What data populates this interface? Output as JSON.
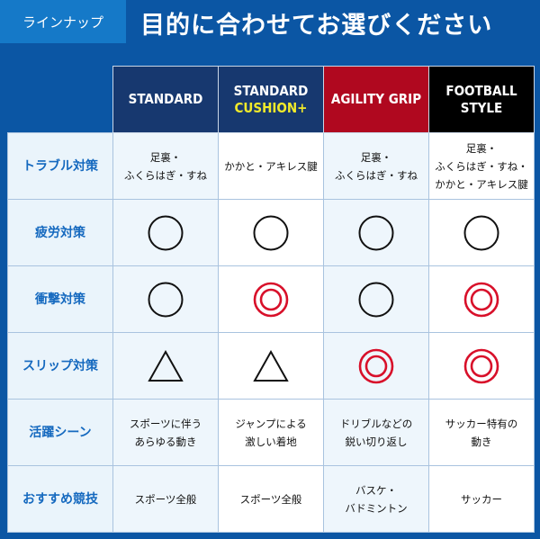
{
  "header": {
    "tag": "ラインナップ",
    "title": "目的に合わせてお選びください"
  },
  "columns": [
    {
      "line1": "STANDARD",
      "line2": "",
      "color": "#17386f"
    },
    {
      "line1": "STANDARD",
      "line2": "CUSHION+",
      "color": "#17386f"
    },
    {
      "line1": "AGILITY GRIP",
      "line2": "",
      "color": "#b0081f"
    },
    {
      "line1": "FOOTBALL",
      "line2": "STYLE",
      "color": "#000000"
    }
  ],
  "rows": [
    {
      "label": "トラブル対策",
      "cells": [
        [
          "足裏・",
          "ふくらはぎ・すね"
        ],
        [
          "かかと・アキレス腱",
          ""
        ],
        [
          "足裏・",
          "ふくらはぎ・すね"
        ],
        [
          "足裏・",
          "ふくらはぎ・すね・",
          "かかと・アキレス腱"
        ]
      ]
    },
    {
      "label": "疲労対策",
      "symbols": [
        "circle",
        "circle",
        "circle",
        "circle"
      ]
    },
    {
      "label": "衝撃対策",
      "symbols": [
        "circle",
        "double-circle",
        "circle",
        "double-circle"
      ]
    },
    {
      "label": "スリップ対策",
      "symbols": [
        "triangle",
        "triangle",
        "double-circle",
        "double-circle"
      ]
    },
    {
      "label": "活躍シーン",
      "cells": [
        [
          "スポーツに伴う",
          "あらゆる動き"
        ],
        [
          "ジャンプによる",
          "激しい着地"
        ],
        [
          "ドリブルなどの",
          "鋭い切り返し"
        ],
        [
          "サッカー特有の",
          "動き"
        ]
      ]
    },
    {
      "label": "おすすめ競技",
      "cells": [
        [
          "スポーツ全般",
          ""
        ],
        [
          "スポーツ全般",
          ""
        ],
        [
          "バスケ・",
          "バドミントン"
        ],
        [
          "サッカー",
          ""
        ]
      ]
    }
  ]
}
